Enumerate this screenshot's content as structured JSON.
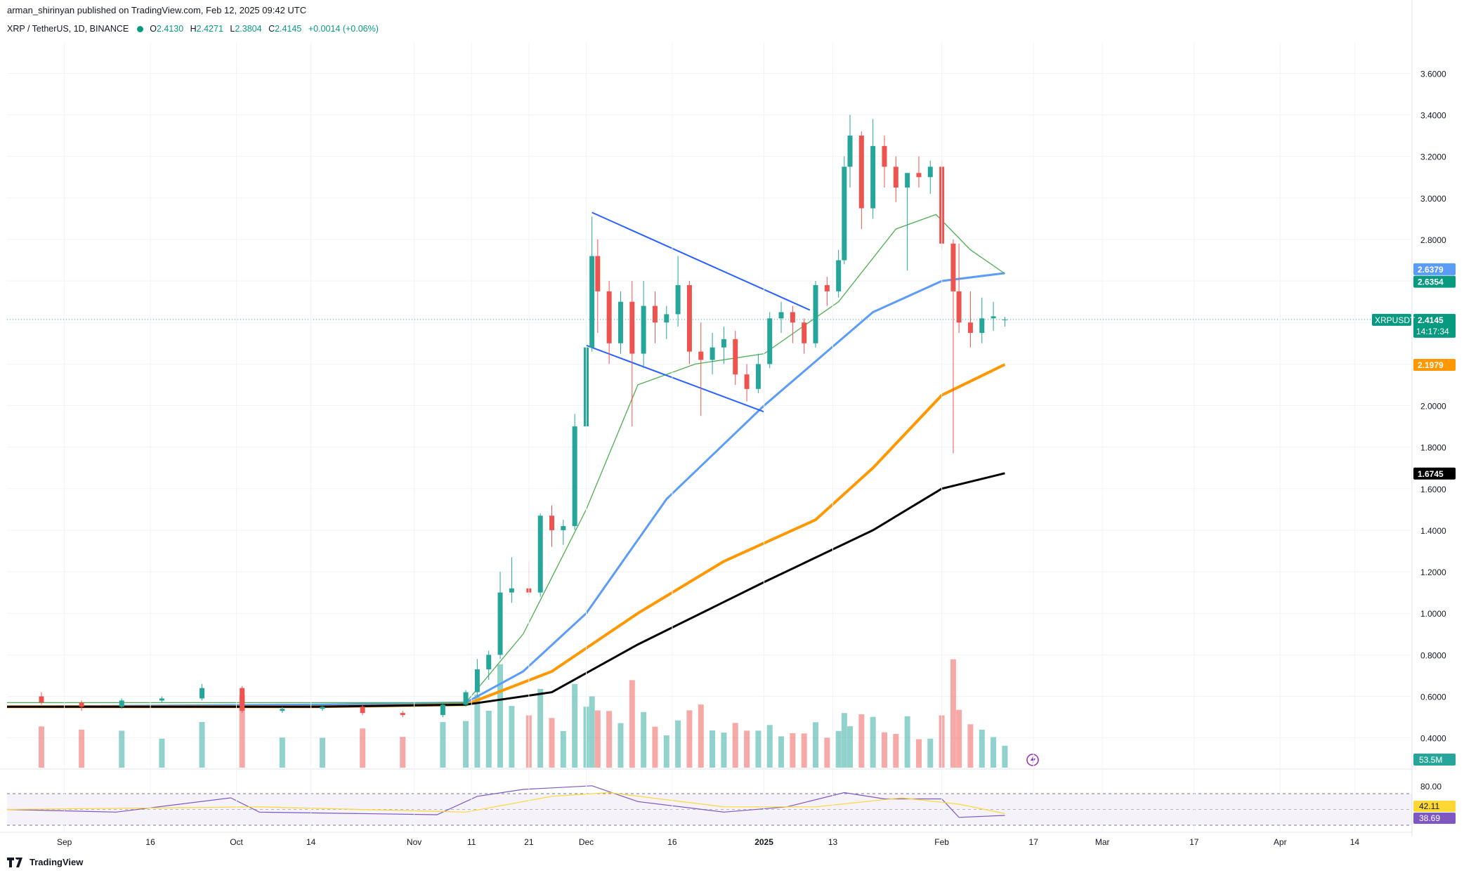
{
  "header": {
    "published": "arman_shirinyan published on TradingView.com, Feb 12, 2025 09:42 UTC",
    "symbol": "XRP / TetherUS, 1D, BINANCE",
    "o_label": "O",
    "o": "2.4130",
    "h_label": "H",
    "h": "2.4271",
    "l_label": "L",
    "l": "2.3804",
    "c_label": "C",
    "c": "2.4145",
    "change": "+0.0014 (+0.06%)"
  },
  "footer": {
    "brand": "TradingView"
  },
  "colors": {
    "up": "#26a69a",
    "down": "#ef5350",
    "ma_fast": "#4caf50",
    "ma_blue": "#5b9cf6",
    "ma_orange": "#ff9800",
    "ma_black": "#000000",
    "trendline": "#2962ff",
    "rsi": "#7e57c2",
    "rsi_ma": "#fdd835"
  },
  "chart_data": {
    "type": "candlestick",
    "symbol": "XRPUSDT",
    "timeframe": "1D",
    "price_axis_ticks": [
      "3.6000",
      "3.4000",
      "3.2000",
      "3.0000",
      "2.8000",
      "2.6000",
      "2.4000",
      "2.2000",
      "2.0000",
      "1.8000",
      "1.6000",
      "1.4000",
      "1.2000",
      "1.0000",
      "0.8000",
      "0.6000",
      "0.4000"
    ],
    "price_range": [
      0.25,
      3.75
    ],
    "time_axis_ticks": [
      "Sep",
      "16",
      "Oct",
      "14",
      "Nov",
      "11",
      "21",
      "Dec",
      "16",
      "2025",
      "13",
      "Feb",
      "17",
      "Mar",
      "17",
      "Apr",
      "14"
    ],
    "price_labels": [
      {
        "name": "ma_blue",
        "value": "2.6379",
        "price": 2.6379,
        "color": "#5b9cf6"
      },
      {
        "name": "ma_fast",
        "value": "2.6354",
        "price": 2.6354,
        "color": "#089981"
      },
      {
        "name": "last",
        "value": "2.4145",
        "price": 2.4145,
        "color": "#089981",
        "symbol": "XRPUSDT",
        "countdown": "14:17:34"
      },
      {
        "name": "ma_orange",
        "value": "2.1979",
        "price": 2.1979,
        "color": "#ff9800"
      },
      {
        "name": "ma_black",
        "value": "1.6745",
        "price": 1.6745,
        "color": "#000000"
      }
    ],
    "volume_label": "53.5M",
    "rsi": {
      "levels": [
        "80.00"
      ],
      "rsi_value": "38.69",
      "rsi_ma_value": "42.11"
    },
    "candles": [
      {
        "d": "2024-08-28",
        "o": 0.6,
        "h": 0.62,
        "l": 0.56,
        "c": 0.57
      },
      {
        "d": "2024-09-04",
        "o": 0.57,
        "h": 0.58,
        "l": 0.53,
        "c": 0.55
      },
      {
        "d": "2024-09-11",
        "o": 0.55,
        "h": 0.59,
        "l": 0.54,
        "c": 0.58
      },
      {
        "d": "2024-09-18",
        "o": 0.58,
        "h": 0.6,
        "l": 0.57,
        "c": 0.59
      },
      {
        "d": "2024-09-25",
        "o": 0.59,
        "h": 0.66,
        "l": 0.58,
        "c": 0.64
      },
      {
        "d": "2024-10-02",
        "o": 0.64,
        "h": 0.65,
        "l": 0.52,
        "c": 0.53
      },
      {
        "d": "2024-10-09",
        "o": 0.53,
        "h": 0.55,
        "l": 0.52,
        "c": 0.54
      },
      {
        "d": "2024-10-16",
        "o": 0.54,
        "h": 0.56,
        "l": 0.53,
        "c": 0.55
      },
      {
        "d": "2024-10-23",
        "o": 0.55,
        "h": 0.56,
        "l": 0.51,
        "c": 0.52
      },
      {
        "d": "2024-10-30",
        "o": 0.52,
        "h": 0.53,
        "l": 0.5,
        "c": 0.51
      },
      {
        "d": "2024-11-06",
        "o": 0.51,
        "h": 0.57,
        "l": 0.5,
        "c": 0.56
      },
      {
        "d": "2024-11-10",
        "o": 0.56,
        "h": 0.63,
        "l": 0.55,
        "c": 0.62
      },
      {
        "d": "2024-11-12",
        "o": 0.62,
        "h": 0.78,
        "l": 0.6,
        "c": 0.73
      },
      {
        "d": "2024-11-14",
        "o": 0.73,
        "h": 0.82,
        "l": 0.68,
        "c": 0.8
      },
      {
        "d": "2024-11-16",
        "o": 0.8,
        "h": 1.2,
        "l": 0.78,
        "c": 1.1
      },
      {
        "d": "2024-11-18",
        "o": 1.1,
        "h": 1.27,
        "l": 1.05,
        "c": 1.12
      },
      {
        "d": "2024-11-21",
        "o": 1.12,
        "h": 1.25,
        "l": 1.08,
        "c": 1.1
      },
      {
        "d": "2024-11-23",
        "o": 1.1,
        "h": 1.48,
        "l": 1.08,
        "c": 1.47
      },
      {
        "d": "2024-11-25",
        "o": 1.47,
        "h": 1.52,
        "l": 1.32,
        "c": 1.4
      },
      {
        "d": "2024-11-27",
        "o": 1.4,
        "h": 1.45,
        "l": 1.33,
        "c": 1.42
      },
      {
        "d": "2024-11-29",
        "o": 1.42,
        "h": 1.96,
        "l": 1.4,
        "c": 1.9
      },
      {
        "d": "2024-12-01",
        "o": 1.9,
        "h": 2.32,
        "l": 1.88,
        "c": 2.28
      },
      {
        "d": "2024-12-02",
        "o": 2.28,
        "h": 2.91,
        "l": 2.26,
        "c": 2.72
      },
      {
        "d": "2024-12-03",
        "o": 2.72,
        "h": 2.8,
        "l": 2.35,
        "c": 2.55
      },
      {
        "d": "2024-12-05",
        "o": 2.55,
        "h": 2.6,
        "l": 2.2,
        "c": 2.3
      },
      {
        "d": "2024-12-07",
        "o": 2.3,
        "h": 2.55,
        "l": 2.25,
        "c": 2.5
      },
      {
        "d": "2024-12-09",
        "o": 2.5,
        "h": 2.6,
        "l": 1.9,
        "c": 2.25
      },
      {
        "d": "2024-12-11",
        "o": 2.25,
        "h": 2.6,
        "l": 2.18,
        "c": 2.48
      },
      {
        "d": "2024-12-13",
        "o": 2.48,
        "h": 2.55,
        "l": 2.3,
        "c": 2.4
      },
      {
        "d": "2024-12-15",
        "o": 2.4,
        "h": 2.48,
        "l": 2.32,
        "c": 2.44
      },
      {
        "d": "2024-12-17",
        "o": 2.44,
        "h": 2.72,
        "l": 2.38,
        "c": 2.58
      },
      {
        "d": "2024-12-19",
        "o": 2.58,
        "h": 2.6,
        "l": 2.2,
        "c": 2.26
      },
      {
        "d": "2024-12-21",
        "o": 2.26,
        "h": 2.4,
        "l": 1.95,
        "c": 2.22
      },
      {
        "d": "2024-12-23",
        "o": 2.22,
        "h": 2.35,
        "l": 2.15,
        "c": 2.28
      },
      {
        "d": "2024-12-25",
        "o": 2.28,
        "h": 2.38,
        "l": 2.2,
        "c": 2.32
      },
      {
        "d": "2024-12-27",
        "o": 2.32,
        "h": 2.36,
        "l": 2.1,
        "c": 2.15
      },
      {
        "d": "2024-12-29",
        "o": 2.15,
        "h": 2.2,
        "l": 2.02,
        "c": 2.08
      },
      {
        "d": "2024-12-31",
        "o": 2.08,
        "h": 2.25,
        "l": 2.06,
        "c": 2.2
      },
      {
        "d": "2025-01-02",
        "o": 2.2,
        "h": 2.45,
        "l": 2.18,
        "c": 2.42
      },
      {
        "d": "2025-01-04",
        "o": 2.42,
        "h": 2.5,
        "l": 2.35,
        "c": 2.45
      },
      {
        "d": "2025-01-06",
        "o": 2.45,
        "h": 2.48,
        "l": 2.3,
        "c": 2.4
      },
      {
        "d": "2025-01-08",
        "o": 2.4,
        "h": 2.42,
        "l": 2.25,
        "c": 2.3
      },
      {
        "d": "2025-01-10",
        "o": 2.3,
        "h": 2.6,
        "l": 2.28,
        "c": 2.58
      },
      {
        "d": "2025-01-12",
        "o": 2.58,
        "h": 2.62,
        "l": 2.48,
        "c": 2.55
      },
      {
        "d": "2025-01-14",
        "o": 2.55,
        "h": 2.75,
        "l": 2.52,
        "c": 2.7
      },
      {
        "d": "2025-01-15",
        "o": 2.7,
        "h": 3.2,
        "l": 2.68,
        "c": 3.15
      },
      {
        "d": "2025-01-16",
        "o": 3.15,
        "h": 3.4,
        "l": 3.05,
        "c": 3.3
      },
      {
        "d": "2025-01-18",
        "o": 3.3,
        "h": 3.32,
        "l": 2.85,
        "c": 2.95
      },
      {
        "d": "2025-01-20",
        "o": 2.95,
        "h": 3.38,
        "l": 2.9,
        "c": 3.25
      },
      {
        "d": "2025-01-22",
        "o": 3.25,
        "h": 3.3,
        "l": 3.05,
        "c": 3.15
      },
      {
        "d": "2025-01-24",
        "o": 3.15,
        "h": 3.2,
        "l": 2.98,
        "c": 3.05
      },
      {
        "d": "2025-01-26",
        "o": 3.05,
        "h": 3.12,
        "l": 2.65,
        "c": 3.12
      },
      {
        "d": "2025-01-28",
        "o": 3.12,
        "h": 3.2,
        "l": 3.05,
        "c": 3.1
      },
      {
        "d": "2025-01-30",
        "o": 3.1,
        "h": 3.18,
        "l": 3.02,
        "c": 3.15
      },
      {
        "d": "2025-02-01",
        "o": 3.15,
        "h": 3.18,
        "l": 2.75,
        "c": 2.78
      },
      {
        "d": "2025-02-03",
        "o": 2.78,
        "h": 2.8,
        "l": 1.77,
        "c": 2.55
      },
      {
        "d": "2025-02-04",
        "o": 2.55,
        "h": 2.78,
        "l": 2.35,
        "c": 2.4
      },
      {
        "d": "2025-02-06",
        "o": 2.4,
        "h": 2.55,
        "l": 2.28,
        "c": 2.35
      },
      {
        "d": "2025-02-08",
        "o": 2.35,
        "h": 2.52,
        "l": 2.3,
        "c": 2.42
      },
      {
        "d": "2025-02-10",
        "o": 2.42,
        "h": 2.5,
        "l": 2.36,
        "c": 2.43
      },
      {
        "d": "2025-02-12",
        "o": 2.413,
        "h": 2.4271,
        "l": 2.3804,
        "c": 2.4145
      }
    ]
  }
}
